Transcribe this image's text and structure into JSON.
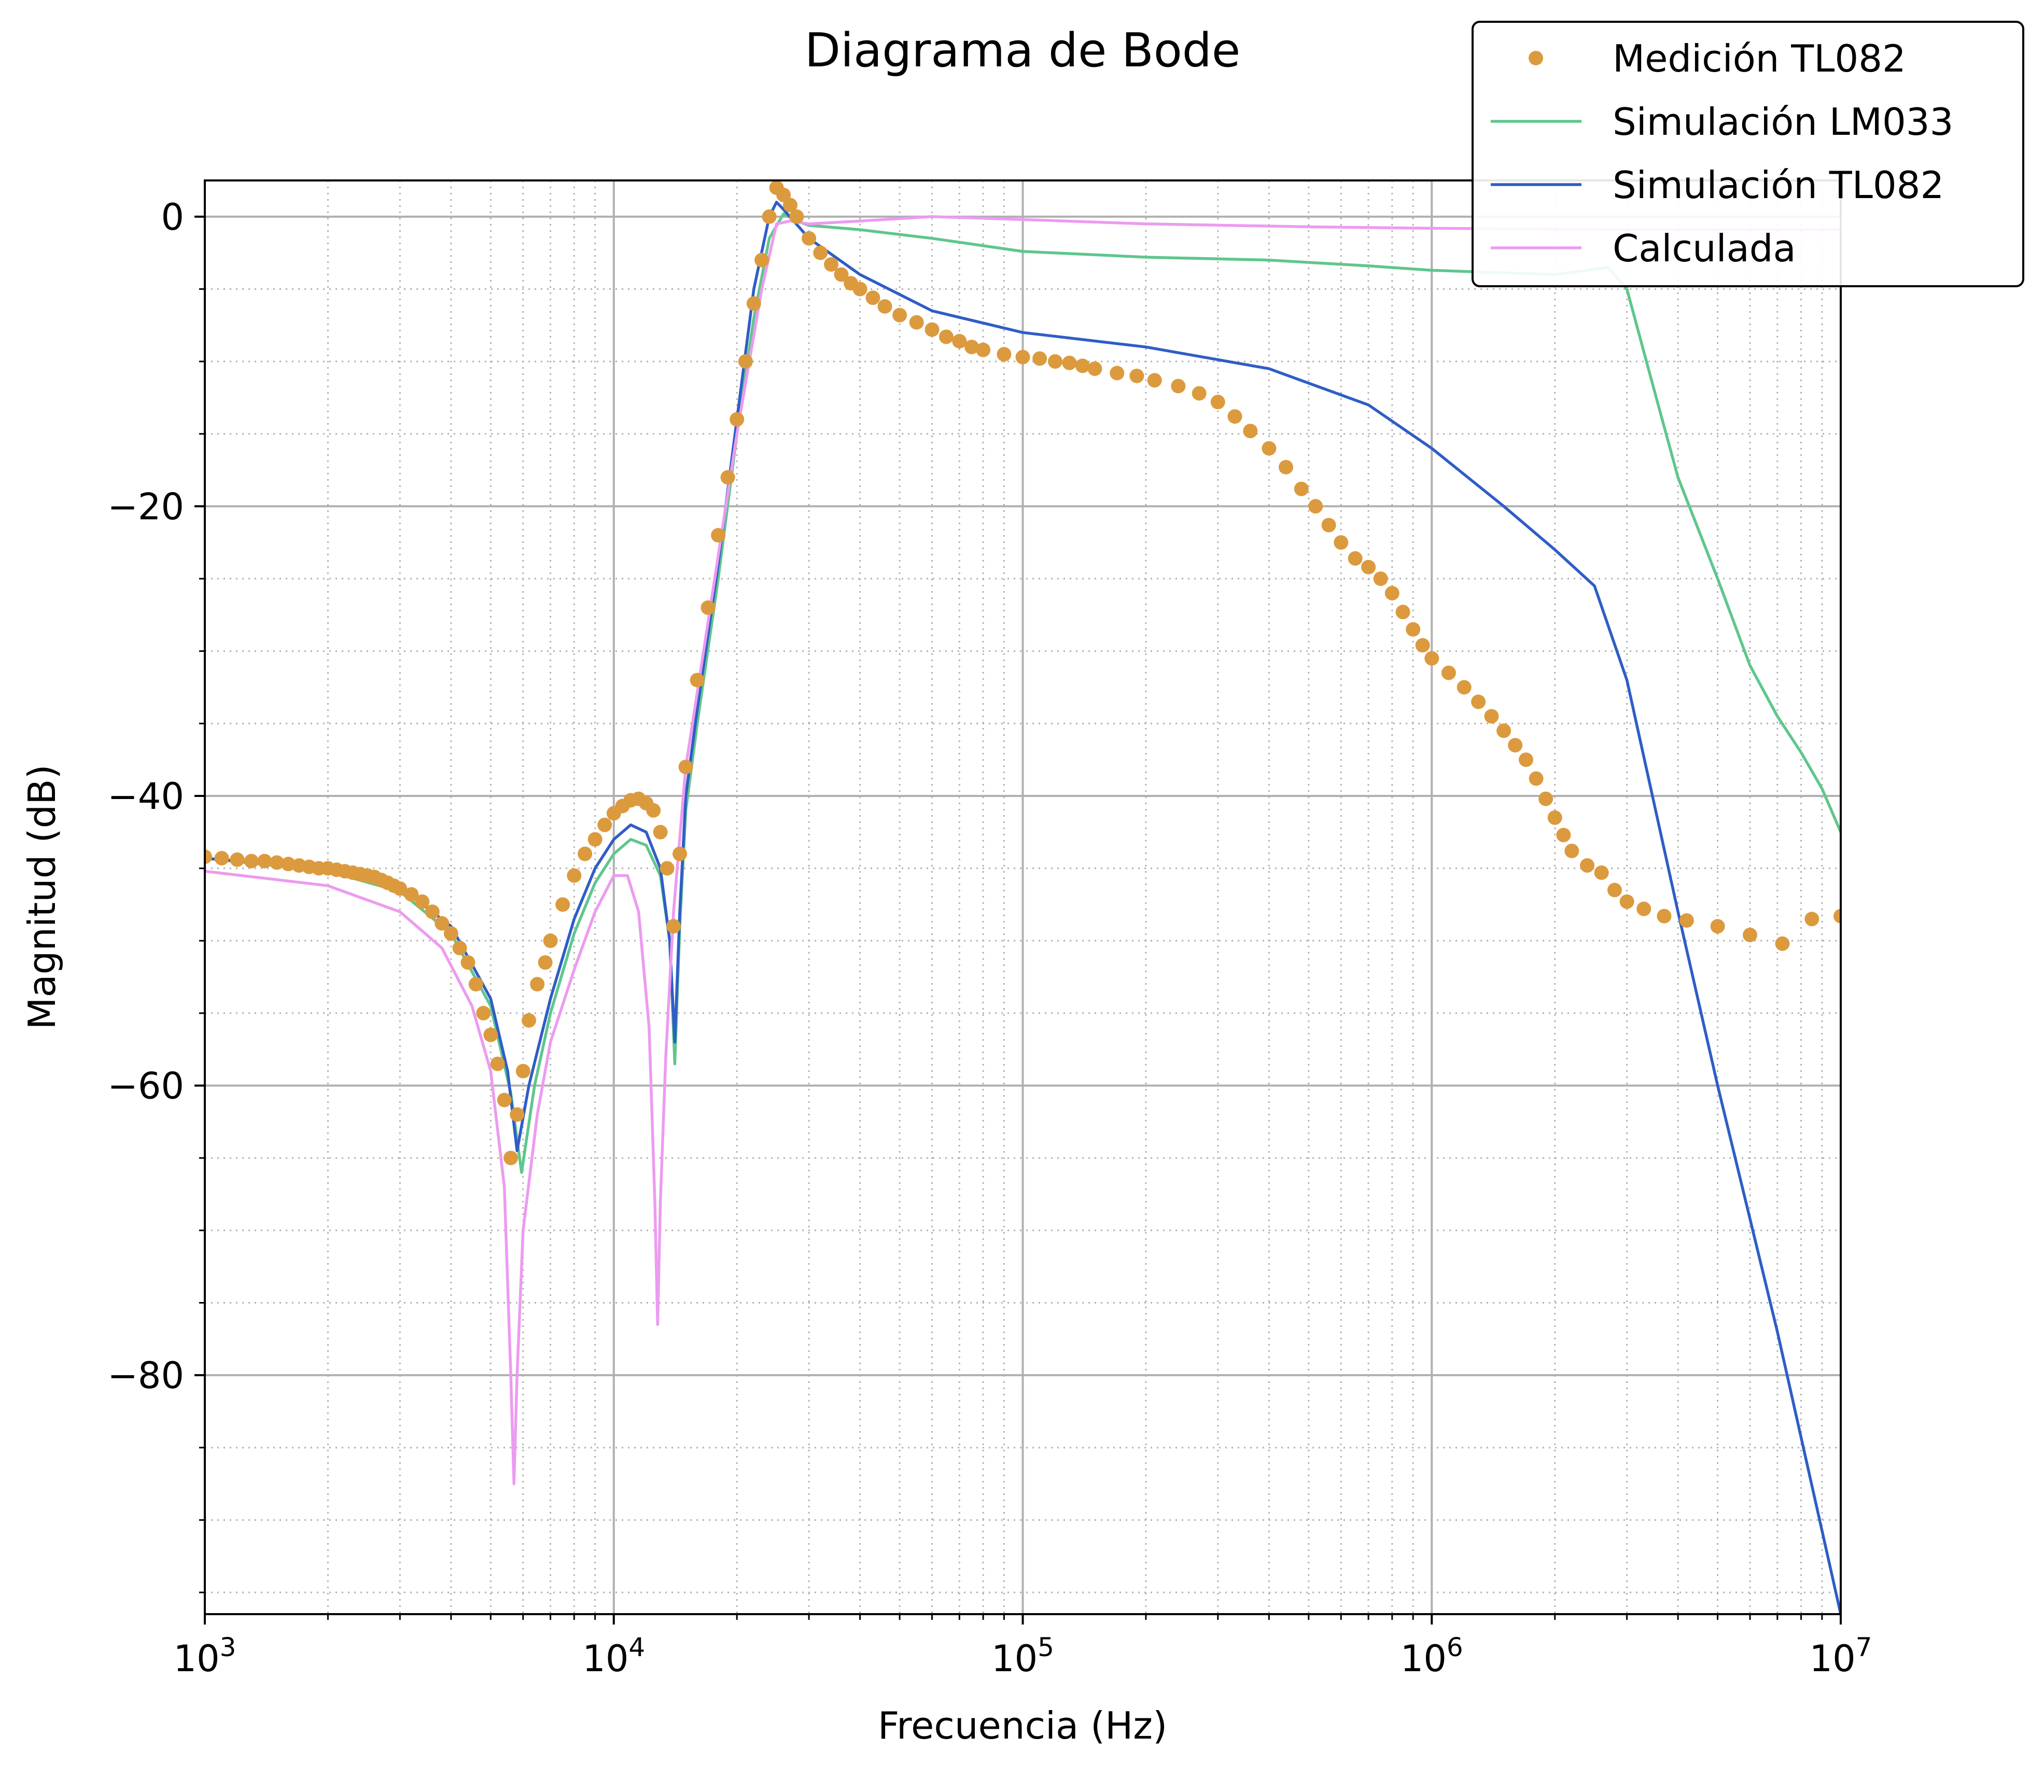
{
  "chart_data": {
    "type": "line",
    "title": "Diagrama de Bode",
    "xlabel": "Frecuencia (Hz)",
    "ylabel": "Magnitud (dB)",
    "xscale": "log",
    "xlim": [
      1000,
      10000000
    ],
    "ylim": [
      -96.5,
      2.5
    ],
    "x_tick_labels": [
      {
        "value": 1000,
        "base": "10",
        "exp": "3"
      },
      {
        "value": 10000,
        "base": "10",
        "exp": "4"
      },
      {
        "value": 100000,
        "base": "10",
        "exp": "5"
      },
      {
        "value": 1000000,
        "base": "10",
        "exp": "6"
      },
      {
        "value": 10000000,
        "base": "10",
        "exp": "7"
      }
    ],
    "y_tick_labels": [
      {
        "value": 0,
        "label": "0"
      },
      {
        "value": -20,
        "label": "−20"
      },
      {
        "value": -40,
        "label": "−40"
      },
      {
        "value": -60,
        "label": "−60"
      },
      {
        "value": -80,
        "label": "−80"
      }
    ],
    "grid": {
      "major": true,
      "minor": true
    },
    "legend": {
      "placement": "top-right"
    },
    "series": [
      {
        "name": "Simulación LM033",
        "style": "line",
        "color": "#5fc68d",
        "points": [
          [
            1000,
            -44.3
          ],
          [
            2000,
            -45.2
          ],
          [
            3000,
            -46.6
          ],
          [
            4000,
            -49.5
          ],
          [
            5000,
            -54.5
          ],
          [
            5600,
            -60.5
          ],
          [
            5950,
            -66
          ],
          [
            6400,
            -60
          ],
          [
            7000,
            -55
          ],
          [
            8000,
            -49.5
          ],
          [
            9000,
            -46
          ],
          [
            10000,
            -44
          ],
          [
            11000,
            -43
          ],
          [
            12000,
            -43.4
          ],
          [
            13000,
            -45.5
          ],
          [
            13700,
            -50
          ],
          [
            14100,
            -58.5
          ],
          [
            14500,
            -49
          ],
          [
            15000,
            -41
          ],
          [
            16000,
            -35
          ],
          [
            18000,
            -25
          ],
          [
            20000,
            -15
          ],
          [
            22000,
            -7
          ],
          [
            24000,
            -1.5
          ],
          [
            26000,
            0.2
          ],
          [
            28000,
            -0.3
          ],
          [
            30000,
            -0.6
          ],
          [
            40000,
            -0.9
          ],
          [
            60000,
            -1.5
          ],
          [
            100000,
            -2.4
          ],
          [
            200000,
            -2.8
          ],
          [
            400000,
            -3.0
          ],
          [
            700000,
            -3.4
          ],
          [
            1000000,
            -3.7
          ],
          [
            2000000,
            -4.0
          ],
          [
            2700000,
            -3.5
          ],
          [
            3000000,
            -5
          ],
          [
            3500000,
            -12
          ],
          [
            4000000,
            -18
          ],
          [
            5000000,
            -25
          ],
          [
            6000000,
            -31
          ],
          [
            7000000,
            -34.5
          ],
          [
            8000000,
            -37
          ],
          [
            9000000,
            -39.5
          ],
          [
            10000000,
            -42.5
          ]
        ]
      },
      {
        "name": "Simulación TL082",
        "style": "line",
        "color": "#2f5dc6",
        "points": [
          [
            1000,
            -44.3
          ],
          [
            2000,
            -45.0
          ],
          [
            3000,
            -46.3
          ],
          [
            4000,
            -49.0
          ],
          [
            5000,
            -54
          ],
          [
            5500,
            -59
          ],
          [
            5800,
            -64.5
          ],
          [
            6200,
            -60
          ],
          [
            7000,
            -54
          ],
          [
            8000,
            -48.5
          ],
          [
            9000,
            -45
          ],
          [
            10000,
            -43
          ],
          [
            11000,
            -42
          ],
          [
            12000,
            -42.5
          ],
          [
            13000,
            -45
          ],
          [
            13700,
            -50
          ],
          [
            14100,
            -57
          ],
          [
            14500,
            -48
          ],
          [
            15000,
            -40
          ],
          [
            16000,
            -34
          ],
          [
            18000,
            -24
          ],
          [
            20000,
            -14
          ],
          [
            22000,
            -5
          ],
          [
            24000,
            0
          ],
          [
            25000,
            1.0
          ],
          [
            26000,
            0.5
          ],
          [
            30000,
            -1.5
          ],
          [
            40000,
            -4
          ],
          [
            60000,
            -6.5
          ],
          [
            100000,
            -8
          ],
          [
            200000,
            -9
          ],
          [
            400000,
            -10.5
          ],
          [
            700000,
            -13
          ],
          [
            1000000,
            -16
          ],
          [
            1500000,
            -20
          ],
          [
            2000000,
            -23
          ],
          [
            2500000,
            -25.5
          ],
          [
            3000000,
            -32
          ],
          [
            4000000,
            -48
          ],
          [
            5000000,
            -60
          ],
          [
            7000000,
            -77
          ],
          [
            10000000,
            -96.5
          ]
        ]
      },
      {
        "name": "Calculada",
        "style": "line",
        "color": "#ec9bf0",
        "points": [
          [
            1000,
            -45.2
          ],
          [
            2000,
            -46.2
          ],
          [
            3000,
            -48
          ],
          [
            3800,
            -50.5
          ],
          [
            4500,
            -54.5
          ],
          [
            5000,
            -59
          ],
          [
            5400,
            -67
          ],
          [
            5600,
            -80
          ],
          [
            5700,
            -87.5
          ],
          [
            5800,
            -80
          ],
          [
            6000,
            -70
          ],
          [
            6500,
            -62
          ],
          [
            7000,
            -57
          ],
          [
            8000,
            -52
          ],
          [
            9000,
            -48
          ],
          [
            10000,
            -45.5
          ],
          [
            10800,
            -45.5
          ],
          [
            11500,
            -48
          ],
          [
            12200,
            -56
          ],
          [
            12600,
            -68
          ],
          [
            12800,
            -76.5
          ],
          [
            13000,
            -68
          ],
          [
            13400,
            -58
          ],
          [
            14000,
            -48
          ],
          [
            15000,
            -38
          ],
          [
            17000,
            -28
          ],
          [
            20000,
            -15
          ],
          [
            23000,
            -5
          ],
          [
            25000,
            -0.5
          ],
          [
            27000,
            -0.3
          ],
          [
            30000,
            -0.5
          ],
          [
            40000,
            -0.3
          ],
          [
            60000,
            0
          ],
          [
            100000,
            -0.2
          ],
          [
            200000,
            -0.5
          ],
          [
            500000,
            -0.7
          ],
          [
            1000000,
            -0.8
          ],
          [
            3000000,
            -0.9
          ],
          [
            10000000,
            -0.9
          ]
        ]
      },
      {
        "name": "Medición TL082",
        "style": "markers",
        "color": "#dc9a3e",
        "points": [
          [
            1000,
            -44.2
          ],
          [
            1100,
            -44.3
          ],
          [
            1200,
            -44.4
          ],
          [
            1300,
            -44.5
          ],
          [
            1400,
            -44.5
          ],
          [
            1500,
            -44.6
          ],
          [
            1600,
            -44.7
          ],
          [
            1700,
            -44.8
          ],
          [
            1800,
            -44.9
          ],
          [
            1900,
            -45.0
          ],
          [
            2000,
            -45.0
          ],
          [
            2100,
            -45.1
          ],
          [
            2200,
            -45.2
          ],
          [
            2300,
            -45.3
          ],
          [
            2400,
            -45.4
          ],
          [
            2500,
            -45.5
          ],
          [
            2600,
            -45.6
          ],
          [
            2700,
            -45.8
          ],
          [
            2800,
            -46.0
          ],
          [
            2900,
            -46.2
          ],
          [
            3000,
            -46.4
          ],
          [
            3200,
            -46.8
          ],
          [
            3400,
            -47.3
          ],
          [
            3600,
            -48.0
          ],
          [
            3800,
            -48.8
          ],
          [
            4000,
            -49.5
          ],
          [
            4200,
            -50.5
          ],
          [
            4400,
            -51.5
          ],
          [
            4600,
            -53
          ],
          [
            4800,
            -55
          ],
          [
            5000,
            -56.5
          ],
          [
            5200,
            -58.5
          ],
          [
            5400,
            -61
          ],
          [
            5600,
            -65
          ],
          [
            5800,
            -62
          ],
          [
            6000,
            -59
          ],
          [
            6200,
            -55.5
          ],
          [
            6500,
            -53
          ],
          [
            6800,
            -51.5
          ],
          [
            7000,
            -50
          ],
          [
            7500,
            -47.5
          ],
          [
            8000,
            -45.5
          ],
          [
            8500,
            -44
          ],
          [
            9000,
            -43
          ],
          [
            9500,
            -42
          ],
          [
            10000,
            -41.2
          ],
          [
            10500,
            -40.7
          ],
          [
            11000,
            -40.3
          ],
          [
            11500,
            -40.2
          ],
          [
            12000,
            -40.5
          ],
          [
            12500,
            -41
          ],
          [
            13000,
            -42.5
          ],
          [
            13500,
            -45
          ],
          [
            14000,
            -49
          ],
          [
            14500,
            -44
          ],
          [
            15000,
            -38
          ],
          [
            16000,
            -32
          ],
          [
            17000,
            -27
          ],
          [
            18000,
            -22
          ],
          [
            19000,
            -18
          ],
          [
            20000,
            -14
          ],
          [
            21000,
            -10
          ],
          [
            22000,
            -6
          ],
          [
            23000,
            -3
          ],
          [
            24000,
            0
          ],
          [
            25000,
            2.0
          ],
          [
            26000,
            1.5
          ],
          [
            27000,
            0.8
          ],
          [
            28000,
            0
          ],
          [
            30000,
            -1.5
          ],
          [
            32000,
            -2.5
          ],
          [
            34000,
            -3.3
          ],
          [
            36000,
            -4
          ],
          [
            38000,
            -4.6
          ],
          [
            40000,
            -5
          ],
          [
            43000,
            -5.6
          ],
          [
            46000,
            -6.2
          ],
          [
            50000,
            -6.8
          ],
          [
            55000,
            -7.3
          ],
          [
            60000,
            -7.8
          ],
          [
            65000,
            -8.3
          ],
          [
            70000,
            -8.6
          ],
          [
            75000,
            -9.0
          ],
          [
            80000,
            -9.2
          ],
          [
            90000,
            -9.5
          ],
          [
            100000,
            -9.7
          ],
          [
            110000,
            -9.8
          ],
          [
            120000,
            -10.0
          ],
          [
            130000,
            -10.1
          ],
          [
            140000,
            -10.3
          ],
          [
            150000,
            -10.5
          ],
          [
            170000,
            -10.8
          ],
          [
            190000,
            -11.0
          ],
          [
            210000,
            -11.3
          ],
          [
            240000,
            -11.7
          ],
          [
            270000,
            -12.2
          ],
          [
            300000,
            -12.8
          ],
          [
            330000,
            -13.8
          ],
          [
            360000,
            -14.8
          ],
          [
            400000,
            -16
          ],
          [
            440000,
            -17.3
          ],
          [
            480000,
            -18.8
          ],
          [
            520000,
            -20
          ],
          [
            560000,
            -21.3
          ],
          [
            600000,
            -22.5
          ],
          [
            650000,
            -23.6
          ],
          [
            700000,
            -24.2
          ],
          [
            750000,
            -25
          ],
          [
            800000,
            -26
          ],
          [
            850000,
            -27.3
          ],
          [
            900000,
            -28.5
          ],
          [
            950000,
            -29.6
          ],
          [
            1000000,
            -30.5
          ],
          [
            1100000,
            -31.5
          ],
          [
            1200000,
            -32.5
          ],
          [
            1300000,
            -33.5
          ],
          [
            1400000,
            -34.5
          ],
          [
            1500000,
            -35.5
          ],
          [
            1600000,
            -36.5
          ],
          [
            1700000,
            -37.5
          ],
          [
            1800000,
            -38.8
          ],
          [
            1900000,
            -40.2
          ],
          [
            2000000,
            -41.5
          ],
          [
            2100000,
            -42.7
          ],
          [
            2200000,
            -43.8
          ],
          [
            2400000,
            -44.8
          ],
          [
            2600000,
            -45.3
          ],
          [
            2800000,
            -46.5
          ],
          [
            3000000,
            -47.3
          ],
          [
            3300000,
            -47.8
          ],
          [
            3700000,
            -48.3
          ],
          [
            4200000,
            -48.6
          ],
          [
            5000000,
            -49
          ],
          [
            6000000,
            -49.6
          ],
          [
            7200000,
            -50.2
          ],
          [
            8500000,
            -48.5
          ],
          [
            10000000,
            -48.3
          ]
        ]
      }
    ]
  }
}
